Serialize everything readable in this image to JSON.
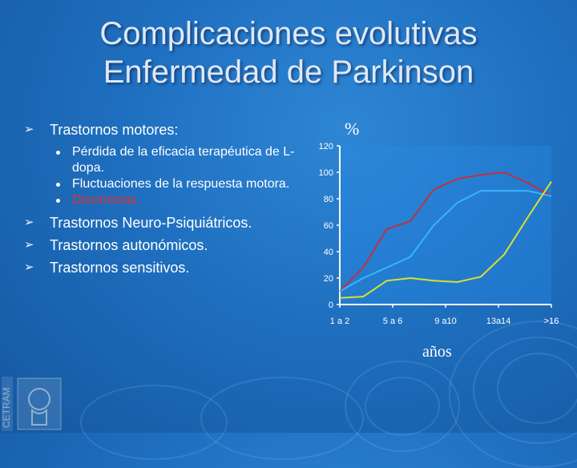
{
  "slide": {
    "title_line1": "Complicaciones evolutivas",
    "title_line2": "Enfermedad de Parkinson",
    "logo_text": "CETRAM"
  },
  "bullets": [
    {
      "label": "Trastornos motores:",
      "subitems": [
        {
          "label": "Pérdida de la eficacia terapéutica de L-dopa."
        },
        {
          "label": "Fluctuaciones de la respuesta motora."
        },
        {
          "label": "Discinesias.",
          "color": "#e0302c"
        }
      ]
    },
    {
      "label": "Trastornos Neuro-Psiquiátricos."
    },
    {
      "label": "Trastornos autonómicos."
    },
    {
      "label": "Trastornos sensitivos."
    }
  ],
  "chart_data": {
    "type": "line",
    "ylabel": "%",
    "xlabel": "años",
    "ylim": [
      0,
      120
    ],
    "yticks": [
      "0",
      "20",
      "40",
      "60",
      "80",
      "100",
      "120"
    ],
    "x_tick_labels": [
      "1 a 2",
      "5 a 6",
      "9 a10",
      "13a14",
      ">16"
    ],
    "x": [
      1,
      2,
      3,
      4,
      5,
      6,
      7,
      8,
      9,
      10
    ],
    "series": [
      {
        "color": "#c03040",
        "values": [
          10,
          28,
          57,
          63,
          87,
          95,
          98,
          100,
          92,
          82
        ]
      },
      {
        "color": "#37b4ff",
        "values": [
          10,
          20,
          28,
          36,
          60,
          77,
          86,
          86,
          86,
          82
        ]
      },
      {
        "color": "#d8e030",
        "values": [
          5,
          6,
          18,
          20,
          18,
          17,
          21,
          38,
          66,
          93
        ]
      }
    ]
  }
}
